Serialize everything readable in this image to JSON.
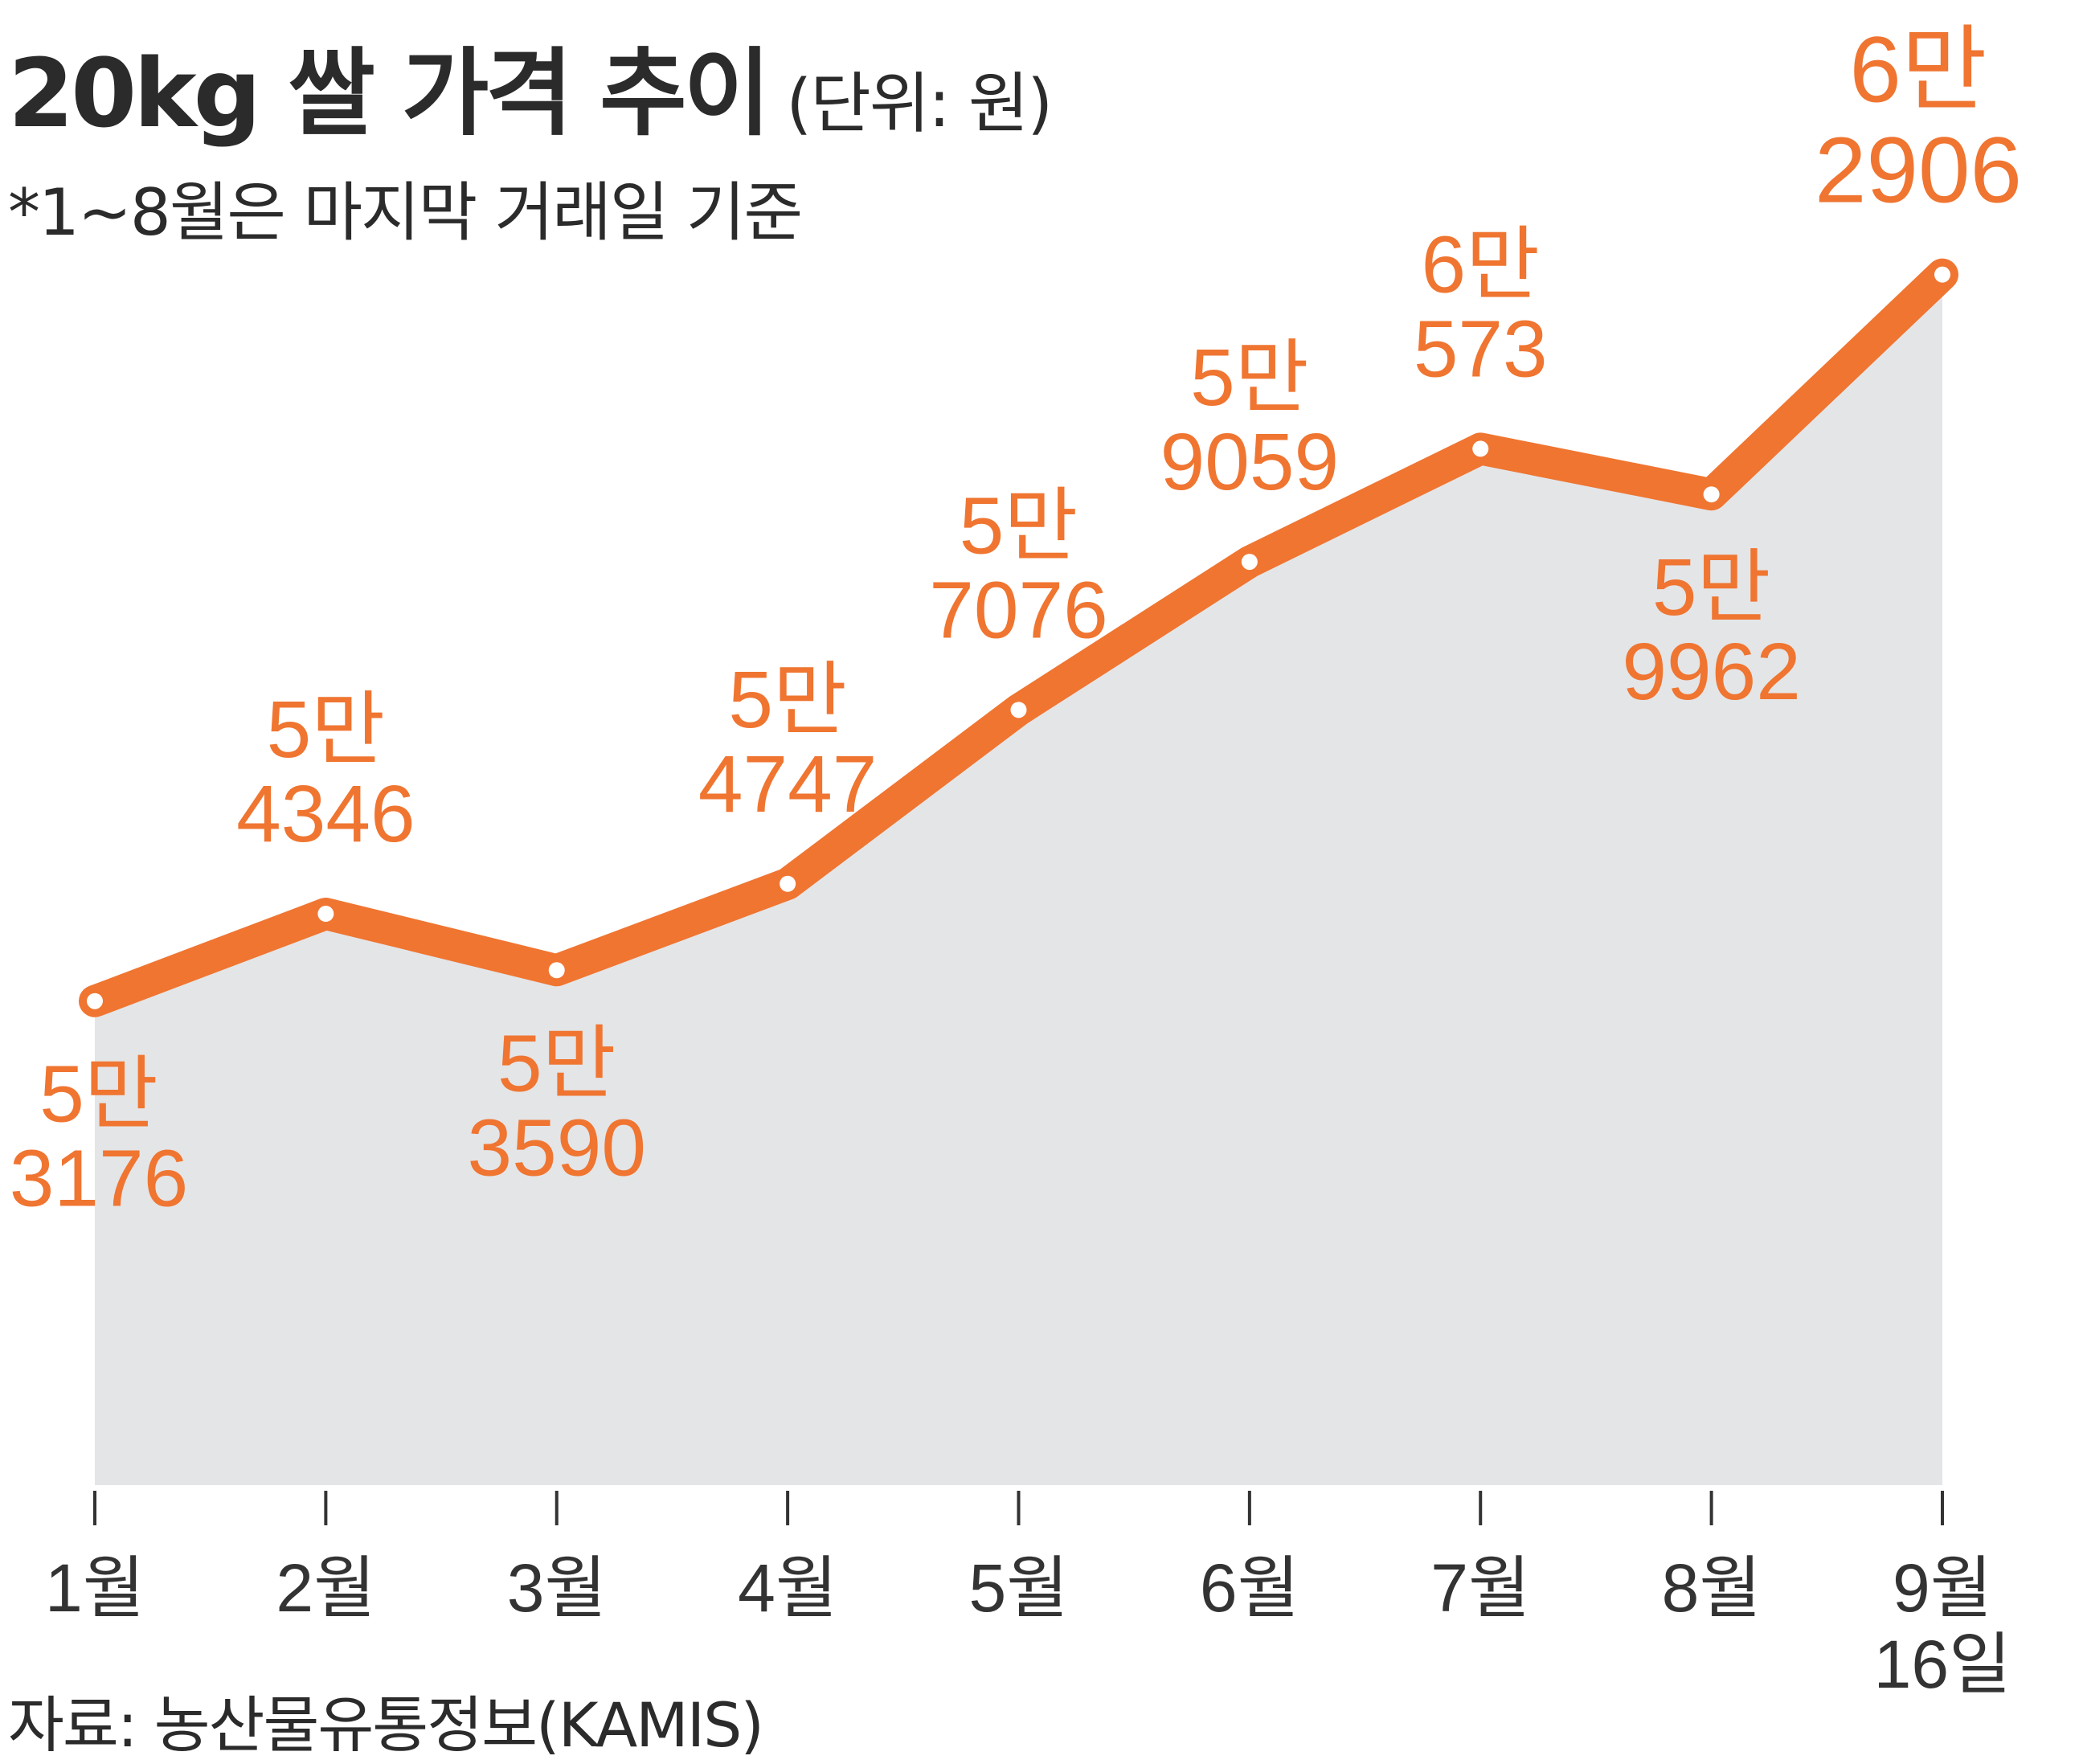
{
  "header": {
    "title": "20kg 쌀 가격 추이",
    "unit": "(단위: 원)",
    "note": "*1~8월은 마지막 거래일 기준"
  },
  "source": "자료: 농산물유통정보(KAMIS)",
  "colors": {
    "line": "#ef7531",
    "area": "#e4e5e7",
    "text": "#2b2b2b",
    "label": "#ef7531"
  },
  "chart_data": {
    "type": "area",
    "categories": [
      "1월",
      "2월",
      "3월",
      "4월",
      "5월",
      "6월",
      "7월",
      "8월",
      "9월 16일"
    ],
    "values": [
      53176,
      54346,
      53590,
      54747,
      57076,
      59059,
      60573,
      59962,
      62906
    ],
    "labels": [
      [
        "5만",
        "3176"
      ],
      [
        "5만",
        "4346"
      ],
      [
        "5만",
        "3590"
      ],
      [
        "5만",
        "4747"
      ],
      [
        "5만",
        "7076"
      ],
      [
        "5만",
        "9059"
      ],
      [
        "6만",
        "573"
      ],
      [
        "5만",
        "9962"
      ],
      [
        "6만",
        "2906"
      ]
    ],
    "label_positions": [
      "below",
      "above",
      "below",
      "above",
      "above",
      "above",
      "above",
      "below",
      "above"
    ],
    "ylim": [
      40000,
      64000
    ],
    "grid": false,
    "legend": "none"
  }
}
